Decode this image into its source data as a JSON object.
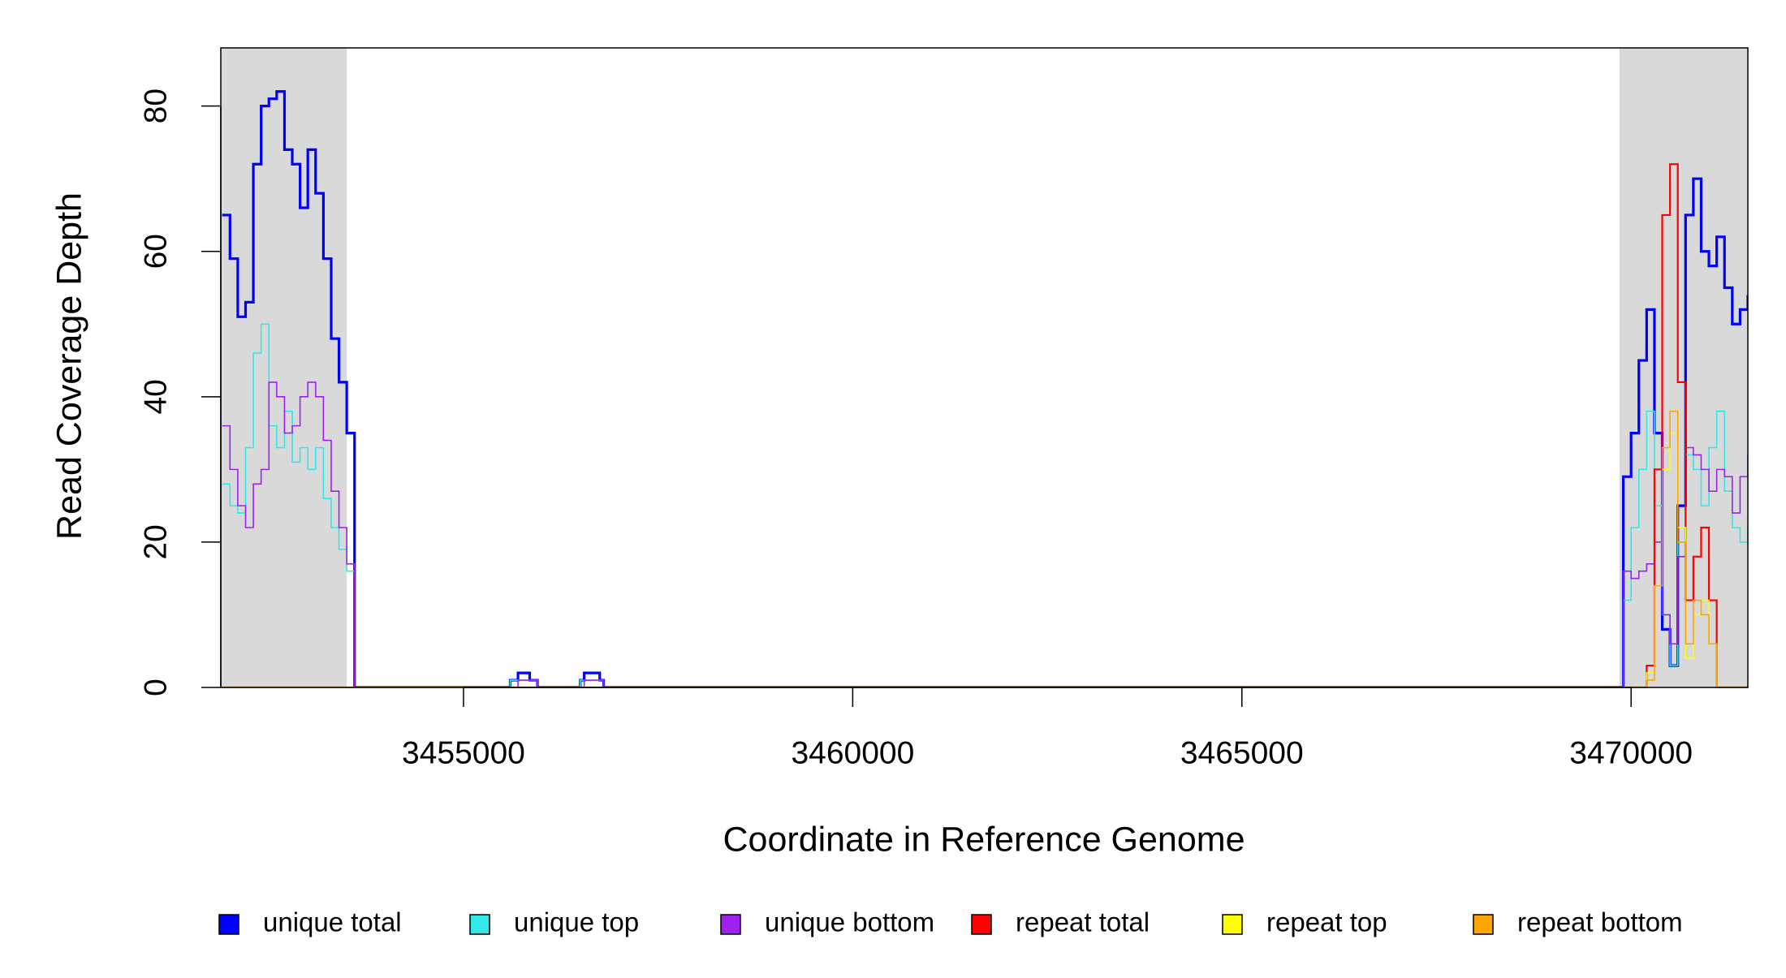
{
  "chart_data": {
    "type": "line",
    "drawstyle": "steps-post",
    "xlabel": "Coordinate in Reference Genome",
    "ylabel": "Read Coverage Depth",
    "xlim": [
      3451882,
      3471500
    ],
    "ylim": [
      0,
      88
    ],
    "xticks": [
      3455000,
      3460000,
      3465000,
      3470000
    ],
    "yticks": [
      0,
      20,
      40,
      60,
      80
    ],
    "shaded_regions": [
      [
        3451882,
        3453500
      ],
      [
        3469850,
        3471500
      ]
    ],
    "shade_color": "#d9d9d9",
    "legend": "bottom",
    "x": [
      3451900,
      3452000,
      3452100,
      3452200,
      3452300,
      3452400,
      3452500,
      3452600,
      3452700,
      3452800,
      3452900,
      3453000,
      3453100,
      3453200,
      3453300,
      3453400,
      3453500,
      3453600,
      3455600,
      3455700,
      3455850,
      3455950,
      3456500,
      3456550,
      3456750,
      3456800,
      3469900,
      3470000,
      3470100,
      3470200,
      3470300,
      3470400,
      3470500,
      3470600,
      3470700,
      3470800,
      3470900,
      3471000,
      3471100,
      3471200,
      3471300,
      3471400,
      3471500
    ],
    "series": [
      {
        "name": "unique total",
        "color": "#0000ff",
        "width": 3.2,
        "values": [
          65,
          59,
          51,
          53,
          72,
          80,
          81,
          82,
          74,
          72,
          66,
          74,
          68,
          59,
          48,
          42,
          35,
          0,
          1,
          2,
          1,
          0,
          1,
          2,
          1,
          0,
          29,
          35,
          45,
          52,
          35,
          8,
          3,
          25,
          65,
          70,
          60,
          58,
          62,
          55,
          50,
          52,
          54
        ]
      },
      {
        "name": "unique top",
        "color": "#33e8e8",
        "width": 1.6,
        "values": [
          28,
          25,
          24,
          33,
          46,
          50,
          36,
          33,
          38,
          31,
          33,
          30,
          33,
          26,
          22,
          19,
          16,
          0,
          1,
          1,
          1,
          0,
          1,
          1,
          1,
          0,
          12,
          22,
          30,
          38,
          25,
          10,
          3,
          20,
          32,
          30,
          25,
          33,
          38,
          27,
          22,
          20,
          22
        ]
      },
      {
        "name": "unique bottom",
        "color": "#a020f0",
        "width": 1.6,
        "values": [
          36,
          30,
          25,
          22,
          28,
          30,
          42,
          40,
          35,
          36,
          40,
          42,
          40,
          34,
          27,
          22,
          17,
          0,
          0,
          1,
          1,
          0,
          0,
          1,
          1,
          0,
          16,
          15,
          16,
          17,
          20,
          10,
          6,
          18,
          33,
          32,
          30,
          27,
          30,
          29,
          24,
          29,
          32
        ]
      },
      {
        "name": "repeat total",
        "color": "#ff0000",
        "width": 2.2,
        "values": [
          0,
          0,
          0,
          0,
          0,
          0,
          0,
          0,
          0,
          0,
          0,
          0,
          0,
          0,
          0,
          0,
          0,
          0,
          0,
          0,
          0,
          0,
          0,
          0,
          0,
          0,
          0,
          0,
          0,
          3,
          30,
          65,
          72,
          42,
          12,
          18,
          22,
          12,
          0,
          0,
          0,
          0,
          0
        ]
      },
      {
        "name": "repeat top",
        "color": "#ffff00",
        "width": 1.6,
        "values": [
          0,
          0,
          0,
          0,
          0,
          0,
          0,
          0,
          0,
          0,
          0,
          0,
          0,
          0,
          0,
          0,
          0,
          0,
          0,
          0,
          0,
          0,
          0,
          0,
          0,
          0,
          0,
          0,
          0,
          2,
          14,
          30,
          35,
          22,
          4,
          10,
          12,
          6,
          0,
          0,
          0,
          0,
          0
        ]
      },
      {
        "name": "repeat bottom",
        "color": "#ffa500",
        "width": 1.6,
        "values": [
          0,
          0,
          0,
          0,
          0,
          0,
          0,
          0,
          0,
          0,
          0,
          0,
          0,
          0,
          0,
          0,
          0,
          0,
          0,
          0,
          0,
          0,
          0,
          0,
          0,
          0,
          0,
          0,
          0,
          1,
          14,
          33,
          38,
          20,
          6,
          12,
          10,
          6,
          0,
          0,
          0,
          0,
          0
        ]
      }
    ]
  }
}
